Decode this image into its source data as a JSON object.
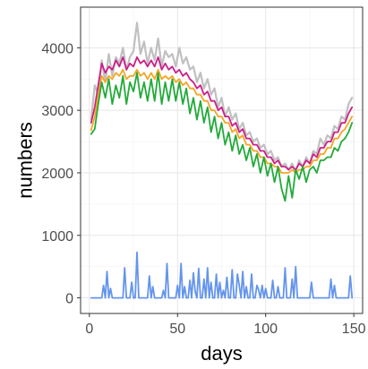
{
  "chart_data": {
    "type": "line",
    "xlabel": "days",
    "ylabel": "numbers",
    "xlim": [
      -5,
      155
    ],
    "ylim": [
      -250,
      4650
    ],
    "xticks": [
      0,
      50,
      100,
      150
    ],
    "xtick_labels": [
      "0",
      "50",
      "100",
      "150"
    ],
    "yticks": [
      0,
      1000,
      2000,
      3000,
      4000
    ],
    "ytick_labels": [
      "0",
      "1000",
      "2000",
      "3000",
      "4000"
    ],
    "grid": true,
    "legend": "none",
    "series": [
      {
        "color": "#c0c0c0",
        "x": [
          1,
          3,
          5,
          7,
          9,
          11,
          13,
          15,
          17,
          19,
          21,
          23,
          25,
          27,
          29,
          31,
          33,
          35,
          37,
          39,
          41,
          43,
          45,
          47,
          49,
          51,
          53,
          55,
          57,
          59,
          61,
          63,
          65,
          67,
          69,
          71,
          73,
          75,
          77,
          79,
          81,
          83,
          85,
          87,
          89,
          91,
          93,
          95,
          97,
          99,
          101,
          103,
          105,
          107,
          109,
          111,
          113,
          115,
          117,
          119,
          121,
          123,
          125,
          127,
          129,
          131,
          133,
          135,
          137,
          139,
          141,
          143,
          145,
          147,
          149
        ],
        "y": [
          2850,
          3400,
          3250,
          3800,
          3450,
          3900,
          3550,
          3850,
          3750,
          4000,
          3650,
          3850,
          3950,
          4400,
          3900,
          4100,
          3750,
          4000,
          3800,
          4150,
          3700,
          3950,
          3850,
          3900,
          3700,
          4000,
          3750,
          3850,
          3650,
          3700,
          3450,
          3600,
          3350,
          3500,
          3250,
          3350,
          3050,
          3200,
          2900,
          3050,
          2850,
          2950,
          2700,
          2800,
          2600,
          2650,
          2500,
          2550,
          2400,
          2450,
          2300,
          2350,
          2200,
          2250,
          2100,
          2150,
          2050,
          2150,
          2000,
          2200,
          2100,
          2250,
          2150,
          2350,
          2300,
          2550,
          2450,
          2600,
          2550,
          2750,
          2700,
          2900,
          2850,
          3100,
          3200
        ]
      },
      {
        "color": "#cc1f8a",
        "x": [
          1,
          3,
          5,
          7,
          9,
          11,
          13,
          15,
          17,
          19,
          21,
          23,
          25,
          27,
          29,
          31,
          33,
          35,
          37,
          39,
          41,
          43,
          45,
          47,
          49,
          51,
          53,
          55,
          57,
          59,
          61,
          63,
          65,
          67,
          69,
          71,
          73,
          75,
          77,
          79,
          81,
          83,
          85,
          87,
          89,
          91,
          93,
          95,
          97,
          99,
          101,
          103,
          105,
          107,
          109,
          111,
          113,
          115,
          117,
          119,
          121,
          123,
          125,
          127,
          129,
          131,
          133,
          135,
          137,
          139,
          141,
          143,
          145,
          147,
          149
        ],
        "y": [
          2800,
          3050,
          3400,
          3750,
          3600,
          3700,
          3650,
          3800,
          3700,
          3850,
          3650,
          3750,
          3700,
          3850,
          3750,
          3800,
          3700,
          3800,
          3700,
          3850,
          3650,
          3750,
          3650,
          3700,
          3600,
          3650,
          3550,
          3600,
          3500,
          3450,
          3350,
          3400,
          3250,
          3300,
          3150,
          3150,
          3000,
          3050,
          2900,
          2900,
          2750,
          2800,
          2650,
          2700,
          2550,
          2550,
          2450,
          2450,
          2350,
          2350,
          2250,
          2250,
          2150,
          2200,
          2100,
          2100,
          2050,
          2100,
          2050,
          2150,
          2100,
          2200,
          2150,
          2300,
          2250,
          2400,
          2400,
          2500,
          2500,
          2650,
          2650,
          2800,
          2800,
          2950,
          3050
        ]
      },
      {
        "color": "#f5a623",
        "x": [
          1,
          3,
          5,
          7,
          9,
          11,
          13,
          15,
          17,
          19,
          21,
          23,
          25,
          27,
          29,
          31,
          33,
          35,
          37,
          39,
          41,
          43,
          45,
          47,
          49,
          51,
          53,
          55,
          57,
          59,
          61,
          63,
          65,
          67,
          69,
          71,
          73,
          75,
          77,
          79,
          81,
          83,
          85,
          87,
          89,
          91,
          93,
          95,
          97,
          99,
          101,
          103,
          105,
          107,
          109,
          111,
          113,
          115,
          117,
          119,
          121,
          123,
          125,
          127,
          129,
          131,
          133,
          135,
          137,
          139,
          141,
          143,
          145,
          147,
          149
        ],
        "y": [
          2680,
          2900,
          3250,
          3550,
          3450,
          3550,
          3500,
          3600,
          3550,
          3650,
          3500,
          3550,
          3550,
          3650,
          3550,
          3600,
          3500,
          3600,
          3500,
          3650,
          3500,
          3550,
          3500,
          3550,
          3450,
          3500,
          3400,
          3450,
          3350,
          3350,
          3250,
          3250,
          3150,
          3150,
          3000,
          3000,
          2900,
          2900,
          2800,
          2800,
          2650,
          2700,
          2550,
          2600,
          2450,
          2450,
          2350,
          2350,
          2250,
          2250,
          2150,
          2150,
          2100,
          2100,
          2000,
          2000,
          2000,
          2050,
          2000,
          2050,
          2050,
          2100,
          2100,
          2200,
          2200,
          2300,
          2300,
          2400,
          2400,
          2550,
          2550,
          2650,
          2700,
          2800,
          2900
        ]
      },
      {
        "color": "#22aa3a",
        "x": [
          1,
          3,
          5,
          7,
          9,
          11,
          13,
          15,
          17,
          19,
          21,
          23,
          25,
          27,
          29,
          31,
          33,
          35,
          37,
          39,
          41,
          43,
          45,
          47,
          49,
          51,
          53,
          55,
          57,
          59,
          61,
          63,
          65,
          67,
          69,
          71,
          73,
          75,
          77,
          79,
          81,
          83,
          85,
          87,
          89,
          91,
          93,
          95,
          97,
          99,
          101,
          103,
          105,
          107,
          109,
          111,
          113,
          115,
          117,
          119,
          121,
          123,
          125,
          127,
          129,
          131,
          133,
          135,
          137,
          139,
          141,
          143,
          145,
          147,
          149
        ],
        "y": [
          2620,
          2700,
          3100,
          3450,
          3200,
          3500,
          3100,
          3400,
          3200,
          3550,
          3100,
          3450,
          3300,
          3600,
          3200,
          3450,
          3150,
          3500,
          3150,
          3600,
          3100,
          3450,
          3150,
          3500,
          3150,
          3450,
          3100,
          3350,
          2950,
          3200,
          2850,
          3150,
          2800,
          3050,
          2650,
          2900,
          2550,
          2800,
          2450,
          2650,
          2350,
          2600,
          2300,
          2450,
          2200,
          2400,
          2100,
          2300,
          2000,
          2250,
          1950,
          2150,
          1850,
          2100,
          1750,
          1550,
          1950,
          1600,
          2050,
          1900,
          2100,
          1850,
          2050,
          2100,
          2000,
          2200,
          2200,
          2250,
          2250,
          2400,
          2350,
          2500,
          2550,
          2650,
          2800
        ]
      },
      {
        "color": "#6495ed",
        "x": [
          1,
          2,
          3,
          4,
          5,
          6,
          7,
          8,
          9,
          10,
          11,
          12,
          13,
          14,
          15,
          16,
          17,
          18,
          19,
          20,
          21,
          22,
          23,
          24,
          25,
          26,
          27,
          28,
          29,
          30,
          31,
          32,
          33,
          34,
          35,
          36,
          37,
          38,
          39,
          40,
          41,
          42,
          43,
          44,
          45,
          46,
          47,
          48,
          49,
          50,
          51,
          52,
          53,
          54,
          55,
          56,
          57,
          58,
          59,
          60,
          61,
          62,
          63,
          64,
          65,
          66,
          67,
          68,
          69,
          70,
          71,
          72,
          73,
          74,
          75,
          76,
          77,
          78,
          79,
          80,
          81,
          82,
          83,
          84,
          85,
          86,
          87,
          88,
          89,
          90,
          91,
          92,
          93,
          94,
          95,
          96,
          97,
          98,
          99,
          100,
          101,
          102,
          103,
          104,
          105,
          106,
          107,
          108,
          109,
          110,
          111,
          112,
          113,
          114,
          115,
          116,
          117,
          118,
          119,
          120,
          121,
          122,
          123,
          124,
          125,
          126,
          127,
          128,
          129,
          130,
          131,
          132,
          133,
          134,
          135,
          136,
          137,
          138,
          139,
          140,
          141,
          142,
          143,
          144,
          145,
          146,
          147,
          148,
          149
        ],
        "y": [
          0,
          0,
          0,
          0,
          0,
          0,
          0,
          200,
          0,
          420,
          0,
          150,
          0,
          0,
          0,
          0,
          0,
          0,
          0,
          480,
          0,
          0,
          0,
          250,
          0,
          0,
          730,
          0,
          0,
          0,
          0,
          0,
          0,
          350,
          0,
          180,
          0,
          0,
          0,
          0,
          0,
          120,
          0,
          550,
          0,
          0,
          0,
          0,
          0,
          200,
          0,
          550,
          0,
          180,
          0,
          0,
          280,
          0,
          400,
          100,
          0,
          470,
          0,
          0,
          300,
          0,
          480,
          0,
          250,
          0,
          0,
          380,
          0,
          250,
          0,
          120,
          0,
          330,
          0,
          0,
          450,
          0,
          0,
          380,
          200,
          0,
          420,
          0,
          180,
          0,
          0,
          380,
          0,
          0,
          200,
          130,
          0,
          200,
          0,
          150,
          0,
          0,
          0,
          280,
          0,
          0,
          180,
          0,
          0,
          0,
          480,
          0,
          0,
          0,
          300,
          0,
          500,
          0,
          0,
          0,
          0,
          0,
          0,
          0,
          0,
          250,
          0,
          0,
          0,
          0,
          0,
          0,
          0,
          0,
          0,
          0,
          300,
          0,
          200,
          0,
          0,
          0,
          0,
          0,
          0,
          0,
          0,
          350,
          0
        ]
      }
    ]
  }
}
